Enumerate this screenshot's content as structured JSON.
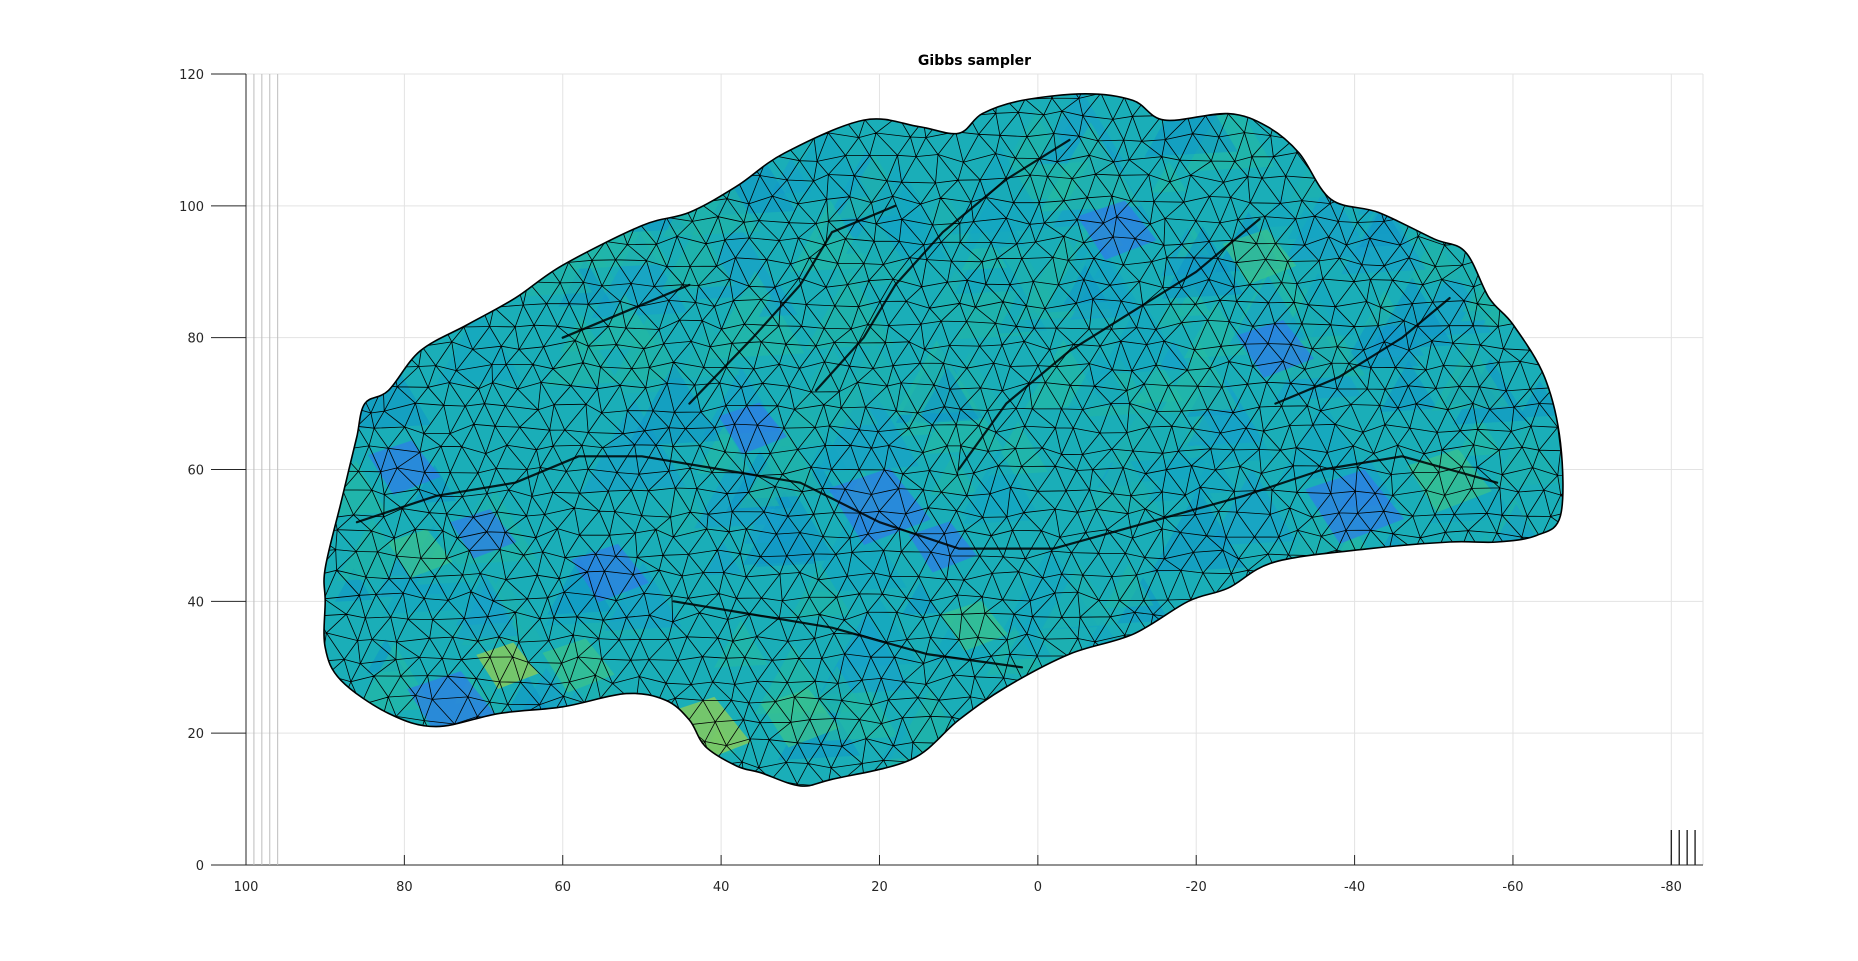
{
  "chart_data": {
    "type": "surface",
    "title": "Gibbs sampler",
    "xlabel": "",
    "ylabel": "",
    "xlim": [
      100,
      -84
    ],
    "ylim": [
      0,
      120
    ],
    "x_ticks": [
      100,
      80,
      60,
      40,
      20,
      0,
      -20,
      -40,
      -60,
      -80
    ],
    "x_tick_labels": [
      "100",
      "80",
      "60",
      "40",
      "20",
      "0",
      "-20",
      "-40",
      "-60",
      "-80"
    ],
    "y_ticks": [
      0,
      20,
      40,
      60,
      80,
      100,
      120
    ],
    "y_tick_labels": [
      "0",
      "20",
      "40",
      "60",
      "80",
      "100",
      "120"
    ],
    "grid": true,
    "colormap": "parula",
    "surface": {
      "description": "triangulated cortical mesh, lateral view",
      "outline": [
        [
          90,
          40
        ],
        [
          90,
          45
        ],
        [
          88,
          55
        ],
        [
          87,
          60
        ],
        [
          86,
          65
        ],
        [
          85,
          70
        ],
        [
          82,
          72
        ],
        [
          78,
          78
        ],
        [
          72,
          82
        ],
        [
          66,
          86
        ],
        [
          60,
          91
        ],
        [
          50,
          97
        ],
        [
          44,
          99
        ],
        [
          38,
          103
        ],
        [
          32,
          108
        ],
        [
          22,
          113
        ],
        [
          15,
          112
        ],
        [
          10,
          111
        ],
        [
          7,
          114
        ],
        [
          2,
          116
        ],
        [
          -6,
          117
        ],
        [
          -12,
          116
        ],
        [
          -16,
          113
        ],
        [
          -24,
          114
        ],
        [
          -29,
          112
        ],
        [
          -33,
          108
        ],
        [
          -37,
          101
        ],
        [
          -43,
          99
        ],
        [
          -50,
          95
        ],
        [
          -54,
          93
        ],
        [
          -57,
          86
        ],
        [
          -60,
          82
        ],
        [
          -64,
          74
        ],
        [
          -66,
          64
        ],
        [
          -66,
          53
        ],
        [
          -63,
          50
        ],
        [
          -58,
          49
        ],
        [
          -52,
          49
        ],
        [
          -42,
          48
        ],
        [
          -30,
          46
        ],
        [
          -24,
          42
        ],
        [
          -19,
          40
        ],
        [
          -12,
          35
        ],
        [
          -4,
          32
        ],
        [
          4,
          27
        ],
        [
          10,
          22
        ],
        [
          16,
          16
        ],
        [
          26,
          13
        ],
        [
          30,
          12
        ],
        [
          35,
          14
        ],
        [
          38,
          15
        ],
        [
          42,
          18
        ],
        [
          44,
          22
        ],
        [
          47,
          25
        ],
        [
          52,
          26
        ],
        [
          60,
          24
        ],
        [
          68,
          23
        ],
        [
          76,
          21
        ],
        [
          82,
          23
        ],
        [
          88,
          28
        ],
        [
          90,
          33
        ]
      ],
      "color_range": [
        0,
        1
      ],
      "dominant_color": "#1aaeb8",
      "highlight_colors": [
        "#2f7ae8",
        "#3cc38a",
        "#9bd04c"
      ]
    },
    "extra_axis_ticks": [
      {
        "axis": "x-left",
        "values": [
          99,
          98,
          97,
          96
        ]
      },
      {
        "axis": "x-right",
        "values": [
          -80,
          -81,
          -82,
          -83
        ]
      }
    ]
  }
}
